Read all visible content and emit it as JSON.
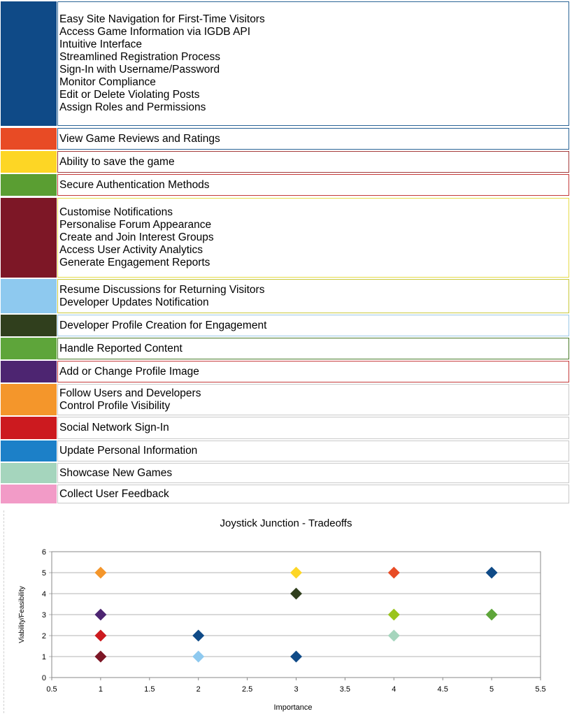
{
  "legend": [
    {
      "color": "#0f4a87",
      "border": "#2a6496",
      "items": [
        "Easy Site Navigation for First-Time Visitors",
        "Access Game Information via IGDB API",
        "Intuitive Interface",
        "Streamlined Registration Process",
        "Sign-In with Username/Password",
        "Monitor Compliance",
        "Edit or Delete Violating Posts",
        "Assign Roles and Permissions"
      ]
    },
    {
      "color": "#e84b25",
      "border": "#2a6496",
      "items": [
        "View Game Reviews and Ratings"
      ]
    },
    {
      "color": "#fdd625",
      "border": "#a43a3a",
      "items": [
        "Ability to save the game"
      ]
    },
    {
      "color": "#5a9e32",
      "border": "#c43a3a",
      "items": [
        "Secure Authentication Methods"
      ]
    },
    {
      "color": "#7d1726",
      "border": "#e6dc4a",
      "items": [
        "Customise Notifications",
        "Personalise Forum Appearance",
        "Create and Join Interest Groups",
        "Access User Activity Analytics",
        "Generate Engagement Reports"
      ]
    },
    {
      "color": "#8ec9ef",
      "border": "#c8c83a",
      "items": [
        "Resume Discussions for Returning Visitors",
        "Developer Updates Notification"
      ]
    },
    {
      "color": "#303f1d",
      "border": "#9ac8e6",
      "items": [
        "Developer Profile Creation for Engagement"
      ]
    },
    {
      "color": "#5ea53a",
      "border": "#4a7a2a",
      "items": [
        "Handle Reported Content"
      ]
    },
    {
      "color": "#4d2571",
      "border": "#c43a3a",
      "items": [
        "Add or Change Profile Image"
      ]
    },
    {
      "color": "#f4962b",
      "border": "#c9c9c9",
      "items": [
        "Follow Users and Developers",
        "Control Profile Visibility"
      ]
    },
    {
      "color": "#cc1a1f",
      "border": "#c9c9c9",
      "items": [
        "Social Network Sign-In"
      ]
    },
    {
      "color": "#1c80c8",
      "border": "#c9c9c9",
      "items": [
        "Update Personal Information"
      ]
    },
    {
      "color": "#a5d5bd",
      "border": "#c9c9c9",
      "items": [
        "Showcase New Games"
      ]
    },
    {
      "color": "#f29bc7",
      "border": "#c9c9c9",
      "items": [
        "Collect User Feedback"
      ]
    }
  ],
  "chart_data": {
    "type": "scatter",
    "title": "Joystick Junction - Tradeoffs",
    "xlabel": "Importance",
    "ylabel": "Viability/Feasibility",
    "xlim": [
      0.5,
      5.5
    ],
    "ylim": [
      0,
      6
    ],
    "x_ticks": [
      "0.5",
      "1",
      "1.5",
      "2",
      "2.5",
      "3",
      "3.5",
      "4",
      "4.5",
      "5",
      "5.5"
    ],
    "y_ticks": [
      "0",
      "1",
      "2",
      "3",
      "4",
      "5",
      "6"
    ],
    "grid": "horizontal",
    "marker": "diamond",
    "points": [
      {
        "x": 1,
        "y": 5,
        "color": "#f4962b"
      },
      {
        "x": 1,
        "y": 3,
        "color": "#4d2571"
      },
      {
        "x": 1,
        "y": 2,
        "color": "#cc1a1f"
      },
      {
        "x": 1,
        "y": 1,
        "color": "#7d1726"
      },
      {
        "x": 2,
        "y": 2,
        "color": "#0f4a87"
      },
      {
        "x": 2,
        "y": 1,
        "color": "#8ec9ef"
      },
      {
        "x": 3,
        "y": 5,
        "color": "#fdd625"
      },
      {
        "x": 3,
        "y": 4,
        "color": "#303f1d"
      },
      {
        "x": 3,
        "y": 1,
        "color": "#0f4a87"
      },
      {
        "x": 4,
        "y": 5,
        "color": "#e84b25"
      },
      {
        "x": 4,
        "y": 3,
        "color": "#9ac41c"
      },
      {
        "x": 4,
        "y": 2,
        "color": "#a5d5bd"
      },
      {
        "x": 5,
        "y": 5,
        "color": "#0f4a87"
      },
      {
        "x": 5,
        "y": 3,
        "color": "#5ea53a"
      }
    ]
  }
}
